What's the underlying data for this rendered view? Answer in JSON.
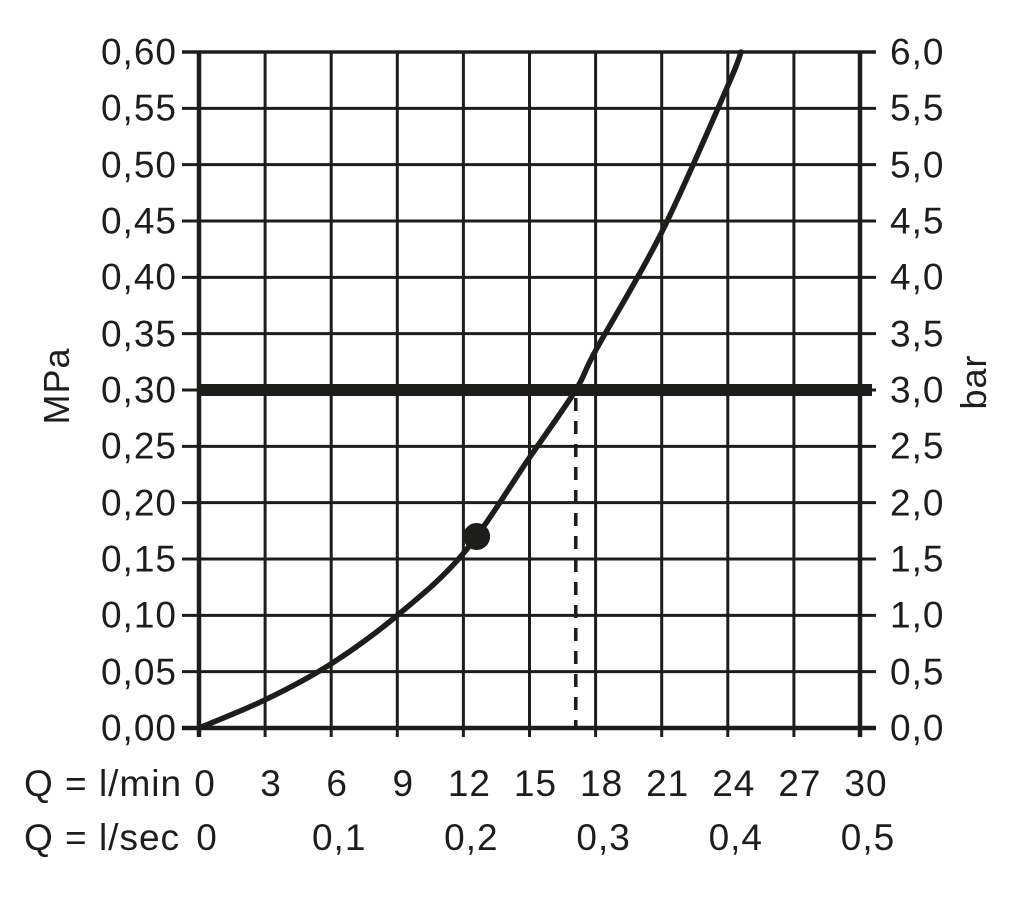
{
  "chart_data": {
    "type": "line",
    "title": "",
    "grid": true,
    "colors": {
      "ink": "#1d1d1b",
      "background": "#ffffff"
    },
    "x_axis": {
      "row1_label": "Q = l/min",
      "row2_label": "Q = l/sec",
      "range_lmin": [
        0,
        30
      ],
      "lmin_ticks": [
        {
          "label": "0",
          "value": 0
        },
        {
          "label": "3",
          "value": 3
        },
        {
          "label": "6",
          "value": 6
        },
        {
          "label": "9",
          "value": 9
        },
        {
          "label": "12",
          "value": 12
        },
        {
          "label": "15",
          "value": 15
        },
        {
          "label": "18",
          "value": 18
        },
        {
          "label": "21",
          "value": 21
        },
        {
          "label": "24",
          "value": 24
        },
        {
          "label": "27",
          "value": 27
        },
        {
          "label": "30",
          "value": 30
        }
      ],
      "lsec_ticks": [
        {
          "label": "0",
          "lmin": 0
        },
        {
          "label": "0,1",
          "lmin": 6
        },
        {
          "label": "0,2",
          "lmin": 12
        },
        {
          "label": "0,3",
          "lmin": 18
        },
        {
          "label": "0,4",
          "lmin": 24
        },
        {
          "label": "0,5",
          "lmin": 30
        }
      ]
    },
    "y_axis_left": {
      "label": "MPa",
      "range": [
        0,
        0.6
      ],
      "ticks": [
        {
          "label": "0,60",
          "value": 0.6
        },
        {
          "label": "0,55",
          "value": 0.55
        },
        {
          "label": "0,50",
          "value": 0.5
        },
        {
          "label": "0,45",
          "value": 0.45
        },
        {
          "label": "0,40",
          "value": 0.4
        },
        {
          "label": "0,35",
          "value": 0.35
        },
        {
          "label": "0,30",
          "value": 0.3
        },
        {
          "label": "0,25",
          "value": 0.25
        },
        {
          "label": "0,20",
          "value": 0.2
        },
        {
          "label": "0,15",
          "value": 0.15
        },
        {
          "label": "0,10",
          "value": 0.1
        },
        {
          "label": "0,05",
          "value": 0.05
        },
        {
          "label": "0,00",
          "value": 0.0
        }
      ]
    },
    "y_axis_right": {
      "label": "bar",
      "range": [
        0,
        6
      ],
      "ticks": [
        {
          "label": "6,0",
          "mpa": 0.6
        },
        {
          "label": "5,5",
          "mpa": 0.55
        },
        {
          "label": "5,0",
          "mpa": 0.5
        },
        {
          "label": "4,5",
          "mpa": 0.45
        },
        {
          "label": "4,0",
          "mpa": 0.4
        },
        {
          "label": "3,5",
          "mpa": 0.35
        },
        {
          "label": "3,0",
          "mpa": 0.3
        },
        {
          "label": "2,5",
          "mpa": 0.25
        },
        {
          "label": "2,0",
          "mpa": 0.2
        },
        {
          "label": "1,5",
          "mpa": 0.15
        },
        {
          "label": "1,0",
          "mpa": 0.1
        },
        {
          "label": "0,5",
          "mpa": 0.05
        },
        {
          "label": "0,0",
          "mpa": 0.0
        }
      ]
    },
    "series": [
      {
        "name": "flow-pressure-curve",
        "points_lmin_mpa": [
          [
            0,
            0
          ],
          [
            3,
            0.025
          ],
          [
            6,
            0.057
          ],
          [
            9,
            0.1
          ],
          [
            12,
            0.155
          ],
          [
            15,
            0.24
          ],
          [
            17.1,
            0.3
          ],
          [
            18,
            0.335
          ],
          [
            21,
            0.44
          ],
          [
            24,
            0.57
          ],
          [
            24.6,
            0.6
          ]
        ]
      }
    ],
    "annotations": {
      "reference_pressure_line_mpa": 0.3,
      "reference_pressure_line_bar": 3.0,
      "dashed_vertical_at_lmin": 17.1,
      "operating_point": {
        "lmin": 12.6,
        "mpa": 0.17
      }
    }
  }
}
